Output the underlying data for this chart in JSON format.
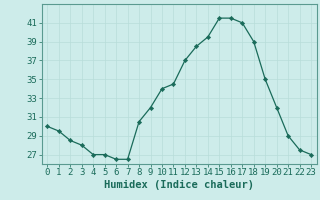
{
  "x": [
    0,
    1,
    2,
    3,
    4,
    5,
    6,
    7,
    8,
    9,
    10,
    11,
    12,
    13,
    14,
    15,
    16,
    17,
    18,
    19,
    20,
    21,
    22,
    23
  ],
  "y": [
    30,
    29.5,
    28.5,
    28,
    27,
    27,
    26.5,
    26.5,
    30.5,
    32,
    34,
    34.5,
    37,
    38.5,
    39.5,
    41.5,
    41.5,
    41,
    39,
    35,
    32,
    29,
    27.5,
    27
  ],
  "xlabel": "Humidex (Indice chaleur)",
  "line_color": "#1a6b5a",
  "marker_color": "#1a6b5a",
  "bg_color": "#cdecea",
  "grid_color": "#b8ddd9",
  "tick_color": "#1a6b5a",
  "spine_color": "#5a9a90",
  "ylim": [
    26,
    43
  ],
  "xlim": [
    -0.5,
    23.5
  ],
  "yticks": [
    27,
    29,
    31,
    33,
    35,
    37,
    39,
    41
  ],
  "xticks": [
    0,
    1,
    2,
    3,
    4,
    5,
    6,
    7,
    8,
    9,
    10,
    11,
    12,
    13,
    14,
    15,
    16,
    17,
    18,
    19,
    20,
    21,
    22,
    23
  ],
  "xtick_labels": [
    "0",
    "1",
    "2",
    "3",
    "4",
    "5",
    "6",
    "7",
    "8",
    "9",
    "10",
    "11",
    "12",
    "13",
    "14",
    "15",
    "16",
    "17",
    "18",
    "19",
    "20",
    "21",
    "22",
    "23"
  ],
  "tick_fontsize": 6.5,
  "xlabel_fontsize": 7.5
}
